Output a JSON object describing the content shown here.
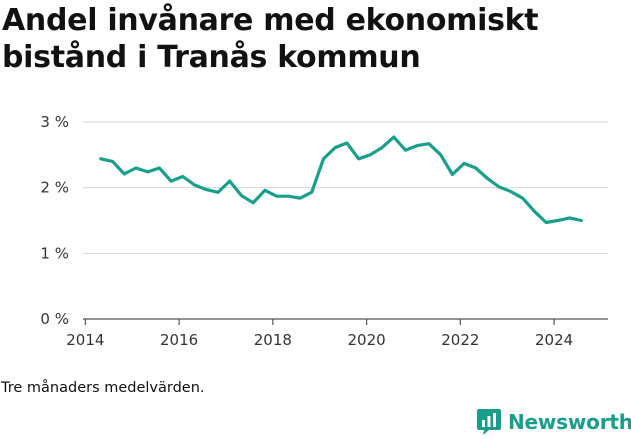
{
  "chart_data": {
    "type": "line",
    "title": "Andel invånare med ekonomiskt bistånd i Tranås kommun",
    "xlabel": "",
    "ylabel": "",
    "xlim": [
      2013.95,
      2025.15
    ],
    "ylim": [
      0,
      3
    ],
    "y_ticks": [
      0,
      1,
      2,
      3
    ],
    "y_tick_labels": [
      "0 %",
      "1 %",
      "2 %",
      "3 %"
    ],
    "x_ticks": [
      2014,
      2016,
      2018,
      2020,
      2022,
      2024
    ],
    "x_tick_labels": [
      "2014",
      "2016",
      "2018",
      "2020",
      "2022",
      "2024"
    ],
    "grid": "horizontal",
    "line_color": "#1a9e8c",
    "series": [
      {
        "x": [
          2014.33,
          2014.58,
          2014.83,
          2015.08,
          2015.33,
          2015.58,
          2015.83,
          2016.08,
          2016.33,
          2016.58,
          2016.83,
          2017.08,
          2017.33,
          2017.58,
          2017.83,
          2018.08,
          2018.33,
          2018.58,
          2018.83,
          2019.08,
          2019.33,
          2019.58,
          2019.83,
          2020.08,
          2020.33,
          2020.58,
          2020.83,
          2021.08,
          2021.33,
          2021.58,
          2021.83,
          2022.08,
          2022.33,
          2022.58,
          2022.83,
          2023.08,
          2023.33,
          2023.58,
          2023.83,
          2024.08,
          2024.33,
          2024.58
        ],
        "values": [
          2.44,
          2.4,
          2.21,
          2.3,
          2.24,
          2.3,
          2.1,
          2.17,
          2.04,
          1.97,
          1.93,
          2.1,
          1.88,
          1.77,
          1.96,
          1.87,
          1.87,
          1.84,
          1.93,
          2.44,
          2.61,
          2.68,
          2.44,
          2.5,
          2.61,
          2.77,
          2.57,
          2.64,
          2.67,
          2.5,
          2.2,
          2.37,
          2.3,
          2.14,
          2.01,
          1.94,
          1.84,
          1.64,
          1.47,
          1.5,
          1.54,
          1.5
        ]
      }
    ]
  },
  "footnote": "Tre månaders medelvärden.",
  "brand": {
    "name": "Newsworthy",
    "color": "#1a9e8c",
    "icon": "bar-chart-speech-icon"
  }
}
